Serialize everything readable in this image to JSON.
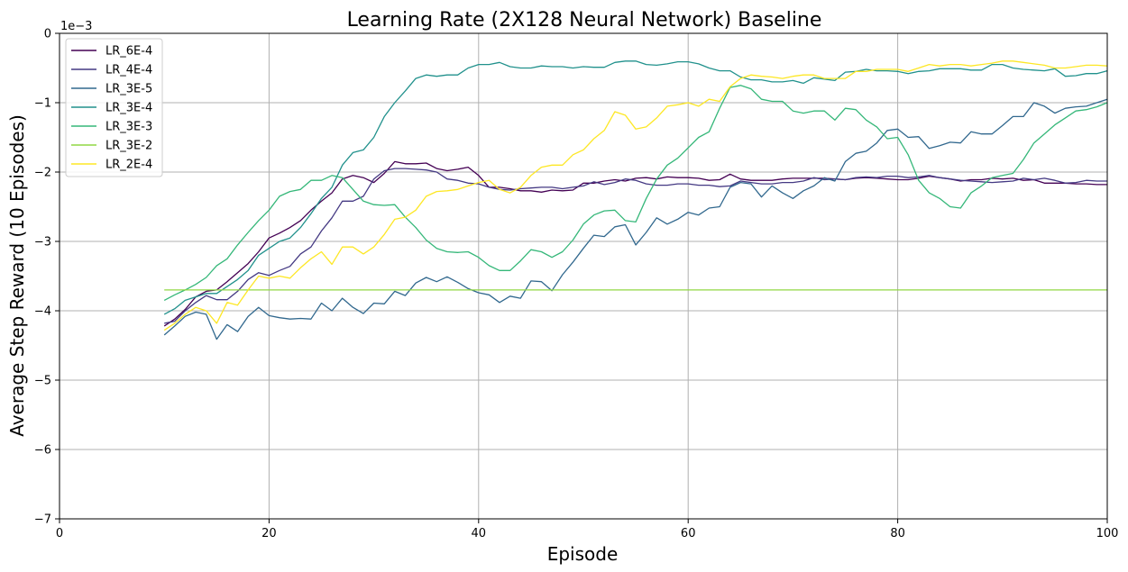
{
  "chart_data": {
    "type": "line",
    "title": "Learning Rate (2X128 Neural Network) Baseline",
    "xlabel": "Episode",
    "ylabel": "Average Step Reward (10 Episodes)",
    "y_multiplier_label": "1e−3",
    "xlim": [
      0,
      100
    ],
    "ylim": [
      -7,
      0
    ],
    "x_ticks": [
      0,
      20,
      40,
      60,
      80,
      100
    ],
    "y_ticks": [
      0,
      -1,
      -2,
      -3,
      -4,
      -5,
      -6,
      -7
    ],
    "x_tick_labels": [
      "0",
      "20",
      "40",
      "60",
      "80",
      "100"
    ],
    "y_tick_labels": [
      "0",
      "−1",
      "−2",
      "−3",
      "−4",
      "−5",
      "−6",
      "−7"
    ],
    "grid": true,
    "legend_position": "upper-left",
    "x_start": 10,
    "series": [
      {
        "name": "LR_6E-4",
        "color": "#440154",
        "values": [
          -4.22,
          -4.12,
          -3.98,
          -3.8,
          -3.72,
          -3.7,
          -3.58,
          -3.45,
          -3.32,
          -3.15,
          -2.95,
          -2.88,
          -2.8,
          -2.7,
          -2.55,
          -2.42,
          -2.3,
          -2.1,
          -2.05,
          -2.08,
          -2.15,
          -2.02,
          -1.85,
          -1.88,
          -1.88,
          -1.87,
          -1.95,
          -1.98,
          -1.96,
          -1.93,
          -2.05,
          -2.22,
          -2.22,
          -2.24,
          -2.27,
          -2.27,
          -2.29,
          -2.26,
          -2.27,
          -2.26,
          -2.16,
          -2.16,
          -2.13,
          -2.11,
          -2.13,
          -2.09,
          -2.08,
          -2.1,
          -2.07,
          -2.08,
          -2.08,
          -2.09,
          -2.12,
          -2.11,
          -2.03,
          -2.1,
          -2.12,
          -2.12,
          -2.12,
          -2.1,
          -2.09,
          -2.09,
          -2.09,
          -2.09,
          -2.1,
          -2.11,
          -2.09,
          -2.08,
          -2.09,
          -2.1,
          -2.11,
          -2.11,
          -2.09,
          -2.06,
          -2.08,
          -2.1,
          -2.13,
          -2.11,
          -2.11,
          -2.09,
          -2.1,
          -2.09,
          -2.12,
          -2.11,
          -2.16,
          -2.16,
          -2.16,
          -2.17,
          -2.17,
          -2.18,
          -2.18
        ]
      },
      {
        "name": "LR_4E-4",
        "color": "#443983",
        "values": [
          -4.18,
          -4.15,
          -4.0,
          -3.88,
          -3.78,
          -3.84,
          -3.84,
          -3.72,
          -3.55,
          -3.45,
          -3.49,
          -3.42,
          -3.36,
          -3.18,
          -3.08,
          -2.85,
          -2.66,
          -2.42,
          -2.42,
          -2.35,
          -2.1,
          -1.98,
          -1.95,
          -1.95,
          -1.96,
          -1.97,
          -2.0,
          -2.1,
          -2.12,
          -2.16,
          -2.17,
          -2.22,
          -2.25,
          -2.26,
          -2.24,
          -2.23,
          -2.22,
          -2.22,
          -2.24,
          -2.22,
          -2.2,
          -2.14,
          -2.18,
          -2.15,
          -2.1,
          -2.12,
          -2.17,
          -2.19,
          -2.19,
          -2.17,
          -2.17,
          -2.19,
          -2.19,
          -2.21,
          -2.2,
          -2.13,
          -2.15,
          -2.17,
          -2.17,
          -2.15,
          -2.15,
          -2.13,
          -2.08,
          -2.11,
          -2.1,
          -2.11,
          -2.08,
          -2.07,
          -2.08,
          -2.06,
          -2.06,
          -2.08,
          -2.07,
          -2.05,
          -2.08,
          -2.1,
          -2.12,
          -2.13,
          -2.14,
          -2.15,
          -2.14,
          -2.13,
          -2.09,
          -2.11,
          -2.09,
          -2.12,
          -2.16,
          -2.15,
          -2.12,
          -2.13,
          -2.13
        ]
      },
      {
        "name": "LR_3E-5",
        "color": "#31688e",
        "values": [
          -4.35,
          -4.22,
          -4.08,
          -4.02,
          -4.05,
          -4.41,
          -4.2,
          -4.3,
          -4.08,
          -3.95,
          -4.07,
          -4.1,
          -4.12,
          -4.11,
          -4.12,
          -3.89,
          -4.0,
          -3.82,
          -3.95,
          -4.04,
          -3.89,
          -3.9,
          -3.72,
          -3.78,
          -3.6,
          -3.52,
          -3.58,
          -3.51,
          -3.59,
          -3.68,
          -3.74,
          -3.77,
          -3.88,
          -3.79,
          -3.82,
          -3.57,
          -3.58,
          -3.71,
          -3.48,
          -3.3,
          -3.1,
          -2.91,
          -2.93,
          -2.79,
          -2.76,
          -3.05,
          -2.87,
          -2.66,
          -2.75,
          -2.68,
          -2.58,
          -2.62,
          -2.52,
          -2.5,
          -2.22,
          -2.15,
          -2.17,
          -2.36,
          -2.2,
          -2.3,
          -2.38,
          -2.27,
          -2.2,
          -2.08,
          -2.13,
          -1.85,
          -1.73,
          -1.7,
          -1.58,
          -1.4,
          -1.38,
          -1.5,
          -1.49,
          -1.66,
          -1.62,
          -1.57,
          -1.58,
          -1.42,
          -1.45,
          -1.45,
          -1.33,
          -1.2,
          -1.2,
          -1.0,
          -1.05,
          -1.15,
          -1.08,
          -1.06,
          -1.05,
          -1.0,
          -0.95
        ]
      },
      {
        "name": "LR_3E-4",
        "color": "#21918c",
        "values": [
          -4.05,
          -3.97,
          -3.85,
          -3.8,
          -3.75,
          -3.75,
          -3.65,
          -3.55,
          -3.42,
          -3.2,
          -3.1,
          -3.0,
          -2.95,
          -2.8,
          -2.6,
          -2.38,
          -2.22,
          -1.9,
          -1.72,
          -1.68,
          -1.5,
          -1.2,
          -1.0,
          -0.83,
          -0.65,
          -0.6,
          -0.62,
          -0.6,
          -0.6,
          -0.5,
          -0.45,
          -0.45,
          -0.42,
          -0.48,
          -0.5,
          -0.5,
          -0.47,
          -0.48,
          -0.48,
          -0.5,
          -0.48,
          -0.49,
          -0.49,
          -0.42,
          -0.4,
          -0.4,
          -0.45,
          -0.46,
          -0.44,
          -0.41,
          -0.41,
          -0.44,
          -0.5,
          -0.54,
          -0.54,
          -0.63,
          -0.67,
          -0.67,
          -0.7,
          -0.7,
          -0.68,
          -0.72,
          -0.64,
          -0.66,
          -0.68,
          -0.56,
          -0.55,
          -0.52,
          -0.54,
          -0.54,
          -0.55,
          -0.58,
          -0.55,
          -0.54,
          -0.51,
          -0.51,
          -0.51,
          -0.53,
          -0.53,
          -0.45,
          -0.45,
          -0.5,
          -0.52,
          -0.53,
          -0.54,
          -0.51,
          -0.62,
          -0.61,
          -0.58,
          -0.58,
          -0.54
        ]
      },
      {
        "name": "LR_3E-3",
        "color": "#35b779",
        "values": [
          -3.85,
          -3.77,
          -3.7,
          -3.62,
          -3.52,
          -3.35,
          -3.25,
          -3.05,
          -2.87,
          -2.7,
          -2.55,
          -2.35,
          -2.28,
          -2.25,
          -2.12,
          -2.12,
          -2.05,
          -2.08,
          -2.25,
          -2.42,
          -2.47,
          -2.48,
          -2.47,
          -2.65,
          -2.8,
          -2.98,
          -3.1,
          -3.15,
          -3.16,
          -3.15,
          -3.23,
          -3.35,
          -3.42,
          -3.42,
          -3.28,
          -3.12,
          -3.15,
          -3.23,
          -3.15,
          -2.98,
          -2.75,
          -2.62,
          -2.56,
          -2.55,
          -2.7,
          -2.72,
          -2.38,
          -2.1,
          -1.9,
          -1.8,
          -1.65,
          -1.5,
          -1.42,
          -1.08,
          -0.78,
          -0.75,
          -0.8,
          -0.95,
          -0.98,
          -0.98,
          -1.12,
          -1.15,
          -1.12,
          -1.12,
          -1.25,
          -1.08,
          -1.1,
          -1.25,
          -1.35,
          -1.52,
          -1.5,
          -1.75,
          -2.12,
          -2.3,
          -2.38,
          -2.5,
          -2.52,
          -2.3,
          -2.2,
          -2.08,
          -2.05,
          -2.02,
          -1.82,
          -1.58,
          -1.45,
          -1.32,
          -1.22,
          -1.12,
          -1.1,
          -1.06,
          -1.0
        ]
      },
      {
        "name": "LR_3E-2",
        "color": "#90d743",
        "values": [
          -3.7,
          -3.7,
          -3.7,
          -3.7,
          -3.7,
          -3.7,
          -3.7,
          -3.7,
          -3.7,
          -3.7,
          -3.7,
          -3.7,
          -3.7,
          -3.7,
          -3.7,
          -3.7,
          -3.7,
          -3.7,
          -3.7,
          -3.7,
          -3.7,
          -3.7,
          -3.7,
          -3.7,
          -3.7,
          -3.7,
          -3.7,
          -3.7,
          -3.7,
          -3.7,
          -3.7,
          -3.7,
          -3.7,
          -3.7,
          -3.7,
          -3.7,
          -3.7,
          -3.7,
          -3.7,
          -3.7,
          -3.7,
          -3.7,
          -3.7,
          -3.7,
          -3.7,
          -3.7,
          -3.7,
          -3.7,
          -3.7,
          -3.7,
          -3.7,
          -3.7,
          -3.7,
          -3.7,
          -3.7,
          -3.7,
          -3.7,
          -3.7,
          -3.7,
          -3.7,
          -3.7,
          -3.7,
          -3.7,
          -3.7,
          -3.7,
          -3.7,
          -3.7,
          -3.7,
          -3.7,
          -3.7,
          -3.7,
          -3.7,
          -3.7,
          -3.7,
          -3.7,
          -3.7,
          -3.7,
          -3.7,
          -3.7,
          -3.7,
          -3.7,
          -3.7,
          -3.7,
          -3.7,
          -3.7,
          -3.7,
          -3.7,
          -3.7,
          -3.7,
          -3.7,
          -3.7
        ]
      },
      {
        "name": "LR_2E-4",
        "color": "#fde725",
        "values": [
          -4.28,
          -4.18,
          -4.05,
          -3.95,
          -4.0,
          -4.18,
          -3.88,
          -3.92,
          -3.7,
          -3.5,
          -3.53,
          -3.5,
          -3.53,
          -3.38,
          -3.25,
          -3.15,
          -3.33,
          -3.08,
          -3.08,
          -3.18,
          -3.08,
          -2.9,
          -2.68,
          -2.65,
          -2.55,
          -2.35,
          -2.28,
          -2.27,
          -2.25,
          -2.2,
          -2.15,
          -2.12,
          -2.25,
          -2.3,
          -2.22,
          -2.05,
          -1.93,
          -1.9,
          -1.9,
          -1.75,
          -1.68,
          -1.52,
          -1.4,
          -1.13,
          -1.18,
          -1.38,
          -1.35,
          -1.22,
          -1.05,
          -1.03,
          -1.0,
          -1.05,
          -0.95,
          -0.98,
          -0.77,
          -0.65,
          -0.6,
          -0.62,
          -0.63,
          -0.65,
          -0.62,
          -0.6,
          -0.6,
          -0.65,
          -0.65,
          -0.65,
          -0.55,
          -0.55,
          -0.52,
          -0.52,
          -0.52,
          -0.55,
          -0.5,
          -0.45,
          -0.47,
          -0.45,
          -0.45,
          -0.47,
          -0.45,
          -0.43,
          -0.4,
          -0.4,
          -0.42,
          -0.44,
          -0.46,
          -0.5,
          -0.5,
          -0.48,
          -0.46,
          -0.46,
          -0.47
        ]
      }
    ]
  }
}
